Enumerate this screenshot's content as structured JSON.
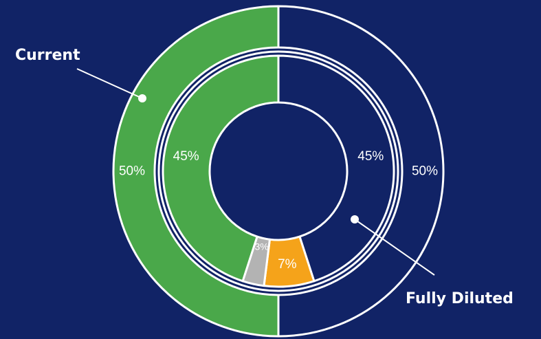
{
  "chart_data": {
    "type": "pie",
    "variant": "nested-donut",
    "rings": [
      {
        "name": "Current",
        "slices": [
          {
            "value": 50,
            "label": "50%",
            "color": "#112366"
          },
          {
            "value": 50,
            "label": "50%",
            "color": "#4aa84a"
          }
        ]
      },
      {
        "name": "Fully Diluted",
        "slices": [
          {
            "value": 45,
            "label": "45%",
            "color": "#112366"
          },
          {
            "value": 7,
            "label": "7%",
            "color": "#f5a31a"
          },
          {
            "value": 3,
            "label": "3%",
            "color": "#b3b3b3"
          },
          {
            "value": 45,
            "label": "45%",
            "color": "#4aa84a"
          }
        ]
      }
    ],
    "annotations": [
      "Current",
      "Fully Diluted"
    ]
  },
  "colors": {
    "background": "#112366",
    "outline": "#ffffff"
  }
}
